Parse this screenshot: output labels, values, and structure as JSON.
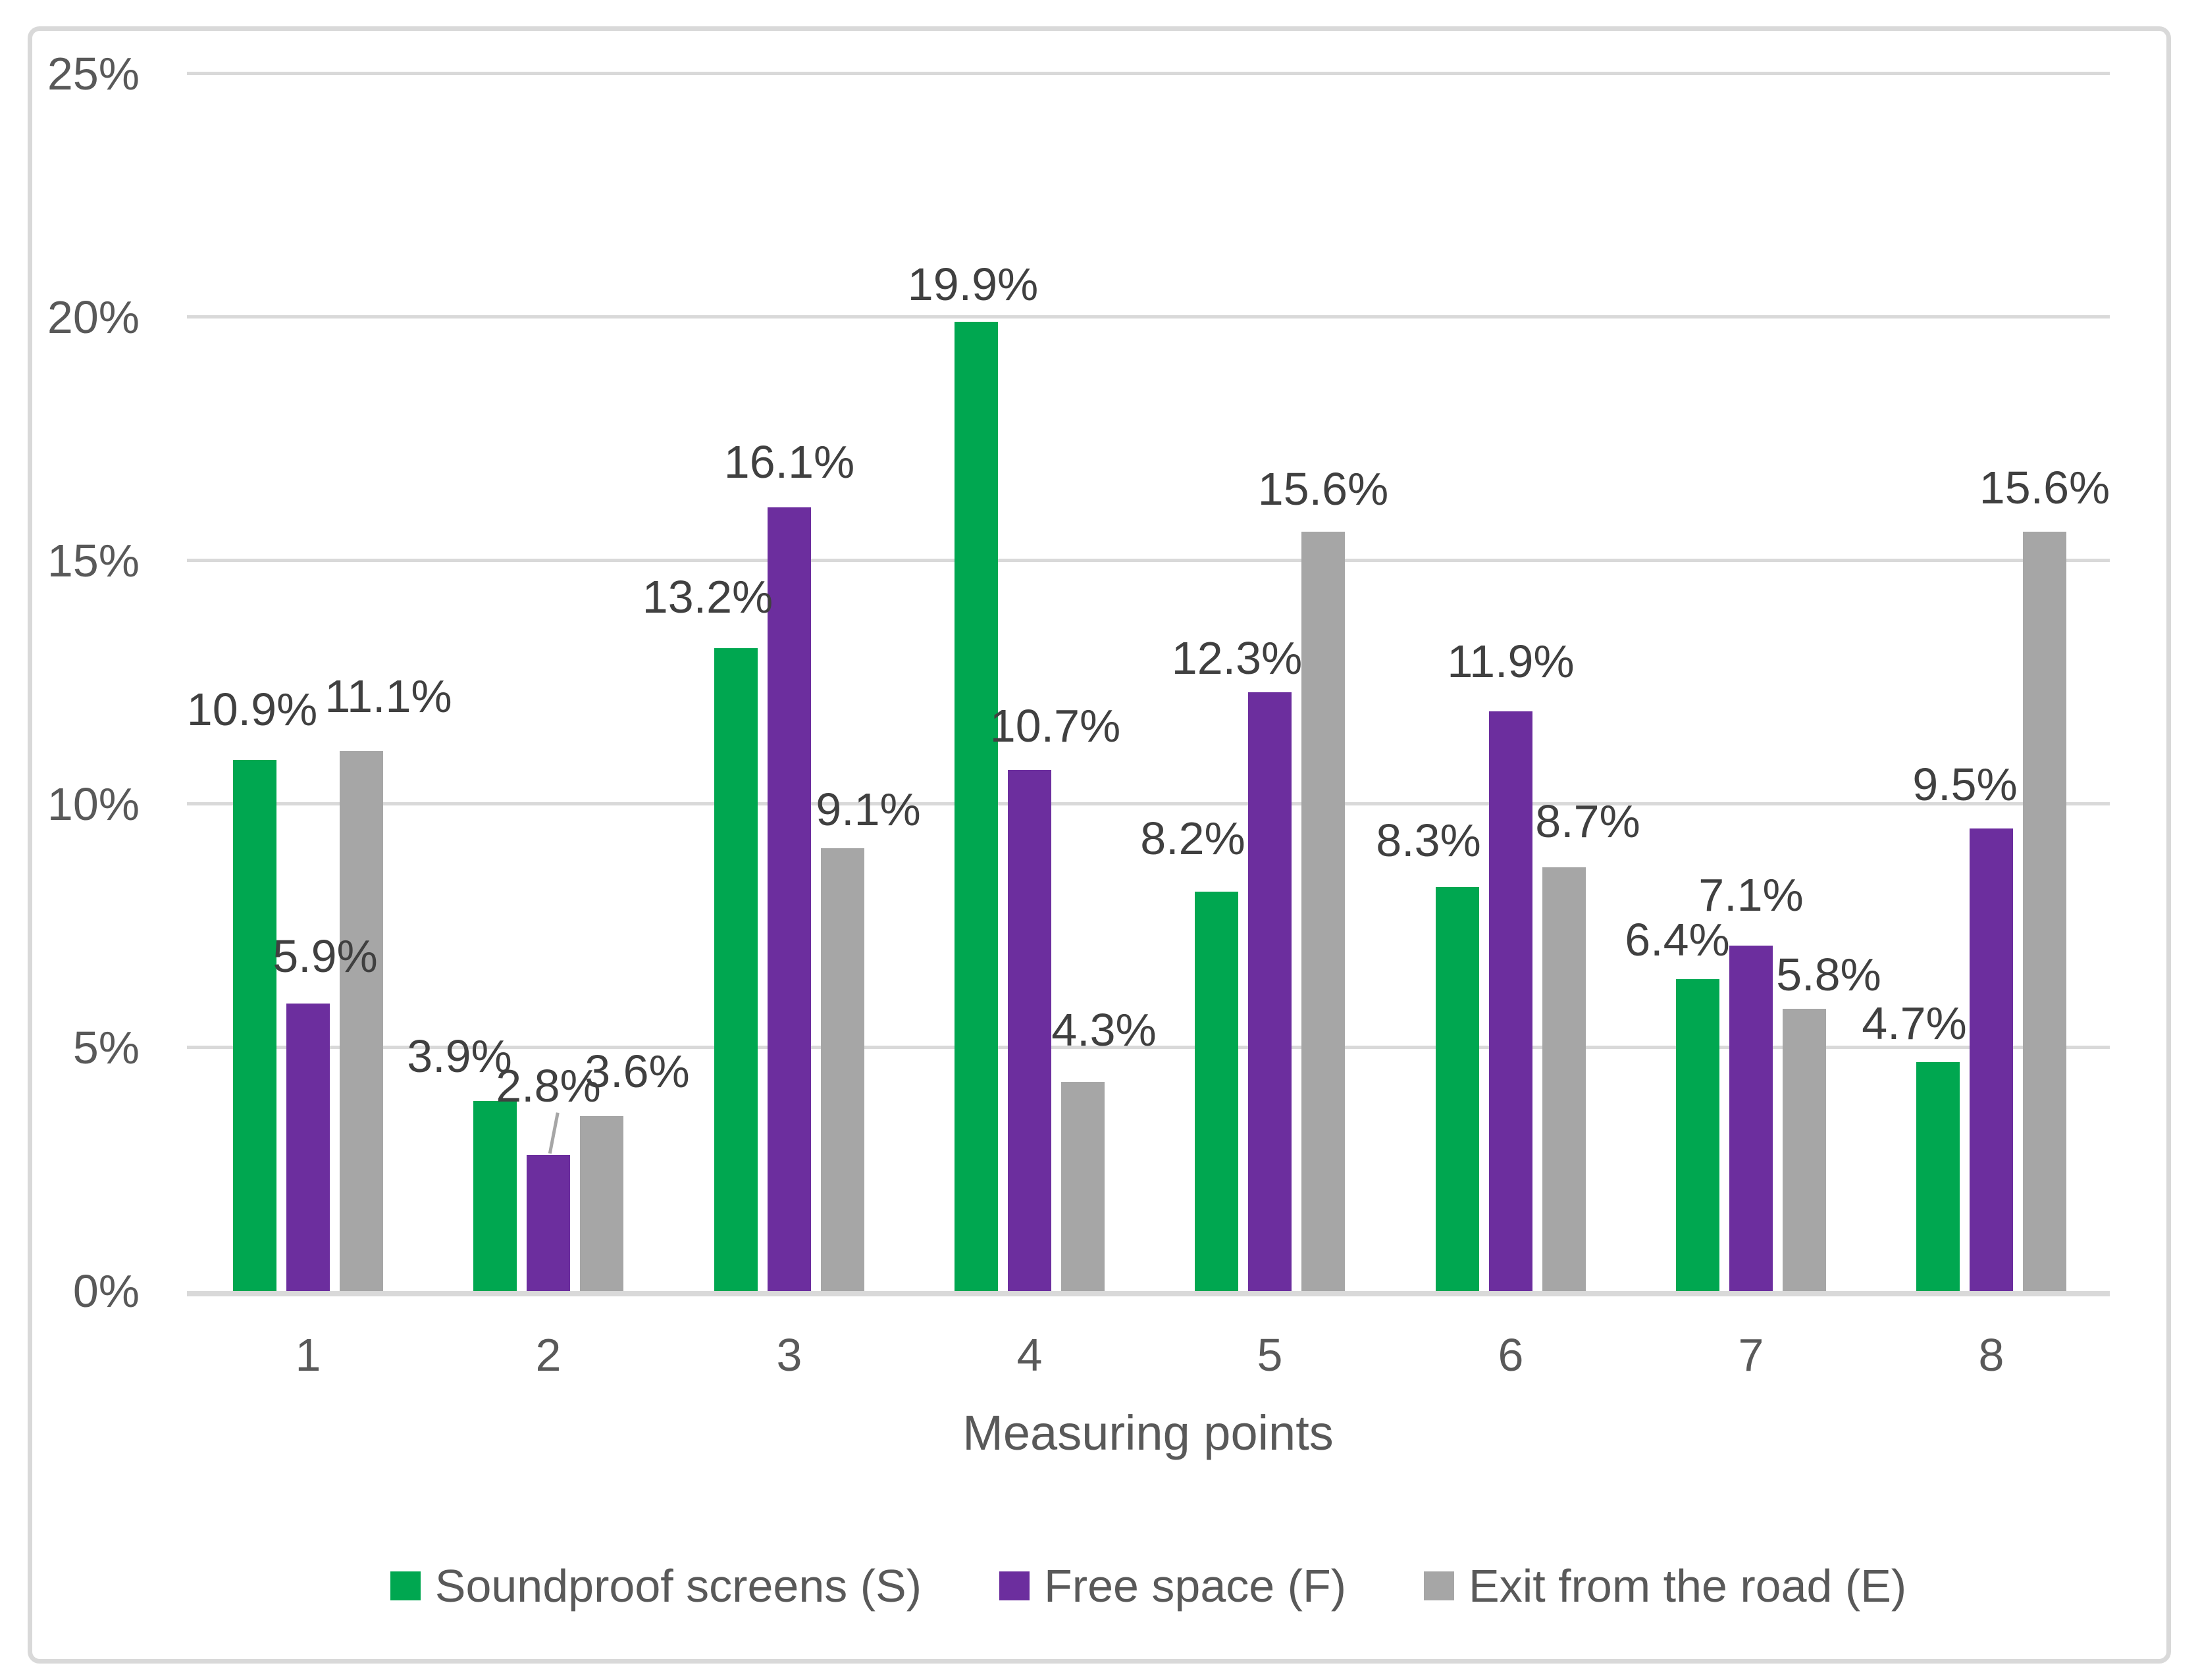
{
  "chart_data": {
    "type": "bar",
    "title": "",
    "xlabel": "Measuring points",
    "ylabel": "",
    "ylim": [
      0,
      25
    ],
    "y_tick_step": 5,
    "y_ticks": [
      "0%",
      "5%",
      "10%",
      "15%",
      "20%",
      "25%"
    ],
    "grid": true,
    "legend_position": "bottom",
    "categories": [
      "1",
      "2",
      "3",
      "4",
      "5",
      "6",
      "7",
      "8"
    ],
    "series": [
      {
        "name": "Soundproof screens (S)",
        "color": "#00A750",
        "values": [
          10.9,
          3.9,
          13.2,
          19.9,
          8.2,
          8.3,
          6.4,
          4.7
        ],
        "labels": [
          "10.9%",
          "3.9%",
          "13.2%",
          "19.9%",
          "8.2%",
          "8.3%",
          "6.4%",
          "4.7%"
        ],
        "label_offsets": [
          {
            "dx": -4,
            "gap": 50
          },
          {
            "dx": -54,
            "gap": 41
          },
          {
            "dx": -43,
            "gap": 51
          },
          {
            "dx": -5,
            "gap": 30
          },
          {
            "dx": -36,
            "gap": 54
          },
          {
            "dx": -44,
            "gap": 44
          },
          {
            "dx": -31,
            "gap": 33
          },
          {
            "dx": -36,
            "gap": 32
          }
        ]
      },
      {
        "name": "Free space (F)",
        "color": "#6C2E9E",
        "values": [
          5.9,
          2.8,
          16.1,
          10.7,
          12.3,
          11.9,
          7.1,
          9.5
        ],
        "labels": [
          "5.9%",
          "2.8%",
          "16.1%",
          "10.7%",
          "12.3%",
          "11.9%",
          "7.1%",
          "9.5%"
        ],
        "label_offsets": [
          {
            "dx": 26,
            "gap": 45
          },
          {
            "dx": 0,
            "gap": 78
          },
          {
            "dx": 0,
            "gap": 42
          },
          {
            "dx": 39,
            "gap": 40
          },
          {
            "dx": -50,
            "gap": 25
          },
          {
            "dx": 0,
            "gap": 49
          },
          {
            "dx": 0,
            "gap": 50
          },
          {
            "dx": -40,
            "gap": 40
          }
        ]
      },
      {
        "name": "Exit from the road (E)",
        "color": "#A6A6A6",
        "values": [
          11.1,
          3.6,
          9.1,
          4.3,
          15.6,
          8.7,
          5.8,
          15.6
        ],
        "labels": [
          "11.1%",
          "3.6%",
          "9.1%",
          "4.3%",
          "15.6%",
          "8.7%",
          "5.8%",
          "15.6%"
        ],
        "label_offsets": [
          {
            "dx": 41,
            "gap": 56
          },
          {
            "dx": 54,
            "gap": 41
          },
          {
            "dx": 39,
            "gap": 32
          },
          {
            "dx": 32,
            "gap": 52
          },
          {
            "dx": 0,
            "gap": 38
          },
          {
            "dx": 36,
            "gap": 43
          },
          {
            "dx": 37,
            "gap": 25
          },
          {
            "dx": 0,
            "gap": 40
          }
        ]
      }
    ],
    "callout": {
      "series_index": 1,
      "category_index": 1
    }
  },
  "colors": {
    "gridline": "#D9D9D9",
    "axis_line": "#D9D9D9",
    "frame_border": "#D9D9D9",
    "data_label_text": "#404040",
    "axis_text": "#595959",
    "leader_line": "#A6A6A6",
    "background": "#FFFFFF"
  }
}
